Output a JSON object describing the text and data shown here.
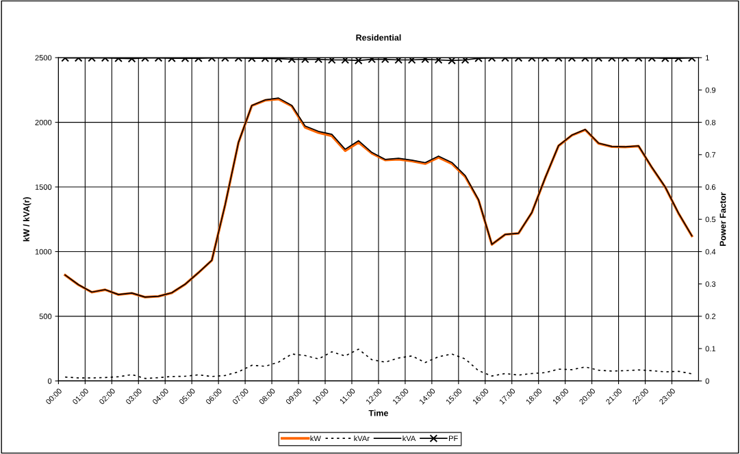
{
  "chart_data": {
    "type": "line",
    "title": "Residential",
    "xlabel": "Time",
    "ylabel": "kW / kVA(r)",
    "y2label": "Power Factor",
    "x": [
      0.25,
      0.75,
      1.25,
      1.75,
      2.25,
      2.75,
      3.25,
      3.75,
      4.25,
      4.75,
      5.25,
      5.75,
      6.25,
      6.75,
      7.25,
      7.75,
      8.25,
      8.75,
      9.25,
      9.75,
      10.25,
      10.75,
      11.25,
      11.75,
      12.25,
      12.75,
      13.25,
      13.75,
      14.25,
      14.75,
      15.25,
      15.75,
      16.25,
      16.75,
      17.25,
      17.75,
      18.25,
      18.75,
      19.25,
      19.75,
      20.25,
      20.75,
      21.25,
      21.75,
      22.25,
      22.75,
      23.25,
      23.75
    ],
    "xlim": [
      0,
      24
    ],
    "xticks": [
      {
        "value": 0,
        "label": "00:00"
      },
      {
        "value": 1,
        "label": "01:00"
      },
      {
        "value": 2,
        "label": "02:00"
      },
      {
        "value": 3,
        "label": "03:00"
      },
      {
        "value": 4,
        "label": "04:00"
      },
      {
        "value": 5,
        "label": "05:00"
      },
      {
        "value": 6,
        "label": "06:00"
      },
      {
        "value": 7,
        "label": "07:00"
      },
      {
        "value": 8,
        "label": "08:00"
      },
      {
        "value": 9,
        "label": "09:00"
      },
      {
        "value": 10,
        "label": "10:00"
      },
      {
        "value": 11,
        "label": "11:00"
      },
      {
        "value": 12,
        "label": "12:00"
      },
      {
        "value": 13,
        "label": "13:00"
      },
      {
        "value": 14,
        "label": "14:00"
      },
      {
        "value": 15,
        "label": "15:00"
      },
      {
        "value": 16,
        "label": "16:00"
      },
      {
        "value": 17,
        "label": "17:00"
      },
      {
        "value": 18,
        "label": "18:00"
      },
      {
        "value": 19,
        "label": "19:00"
      },
      {
        "value": 20,
        "label": "20:00"
      },
      {
        "value": 21,
        "label": "21:00"
      },
      {
        "value": 22,
        "label": "22:00"
      },
      {
        "value": 23,
        "label": "23:00"
      }
    ],
    "ylim": [
      0,
      2500
    ],
    "yticks": [
      0,
      500,
      1000,
      1500,
      2000,
      2500
    ],
    "y2lim": [
      0,
      1
    ],
    "y2ticks": [
      0,
      0.1,
      0.2,
      0.3,
      0.4,
      0.5,
      0.6,
      0.7,
      0.8,
      0.9,
      1
    ],
    "grid": true,
    "legend": "bottom",
    "series": [
      {
        "name": "kW",
        "color": "#ff6600",
        "line_style": "solid",
        "marker": "none",
        "values": [
          818,
          743,
          686,
          705,
          667,
          678,
          648,
          654,
          681,
          747,
          837,
          932,
          1362,
          1844,
          2128,
          2170,
          2180,
          2125,
          1960,
          1920,
          1895,
          1780,
          1845,
          1760,
          1708,
          1713,
          1700,
          1680,
          1728,
          1680,
          1580,
          1398,
          1055,
          1132,
          1141,
          1302,
          1570,
          1818,
          1899,
          1942,
          1837,
          1811,
          1809,
          1816,
          1650,
          1498,
          1295,
          1121
        ]
      },
      {
        "name": "kVAr",
        "color": "#000000",
        "line_style": "dotted",
        "marker": "none",
        "values": [
          30,
          23,
          23,
          26,
          32,
          49,
          19,
          25,
          34,
          36,
          47,
          34,
          42,
          70,
          121,
          113,
          145,
          208,
          196,
          170,
          225,
          193,
          245,
          164,
          145,
          177,
          193,
          142,
          187,
          208,
          170,
          79,
          38,
          57,
          45,
          57,
          64,
          91,
          87,
          108,
          83,
          76,
          79,
          85,
          79,
          70,
          74,
          55
        ]
      },
      {
        "name": "kVA",
        "color": "#000000",
        "line_style": "solid",
        "marker": "none",
        "values": [
          819,
          744,
          687,
          706,
          668,
          680,
          648,
          655,
          682,
          748,
          838,
          933,
          1363,
          1845,
          2130,
          2173,
          2188,
          2130,
          1971,
          1930,
          1907,
          1792,
          1858,
          1767,
          1713,
          1722,
          1707,
          1688,
          1739,
          1690,
          1588,
          1401,
          1056,
          1133,
          1142,
          1303,
          1571,
          1820,
          1901,
          1945,
          1839,
          1813,
          1811,
          1818,
          1652,
          1500,
          1297,
          1122
        ]
      },
      {
        "name": "PF",
        "color": "#000000",
        "line_style": "solid",
        "marker": "cross",
        "axis": "y2",
        "values": [
          0.999,
          0.999,
          0.999,
          0.999,
          0.998,
          0.997,
          0.999,
          0.999,
          0.998,
          0.998,
          0.998,
          0.999,
          0.999,
          0.999,
          0.998,
          0.998,
          0.997,
          0.995,
          0.995,
          0.995,
          0.993,
          0.993,
          0.991,
          0.995,
          0.995,
          0.993,
          0.993,
          0.995,
          0.993,
          0.991,
          0.993,
          0.998,
          0.999,
          0.999,
          0.999,
          0.999,
          0.999,
          0.999,
          0.999,
          0.999,
          0.999,
          0.999,
          0.999,
          0.999,
          0.999,
          0.998,
          0.998,
          0.999
        ]
      }
    ]
  }
}
